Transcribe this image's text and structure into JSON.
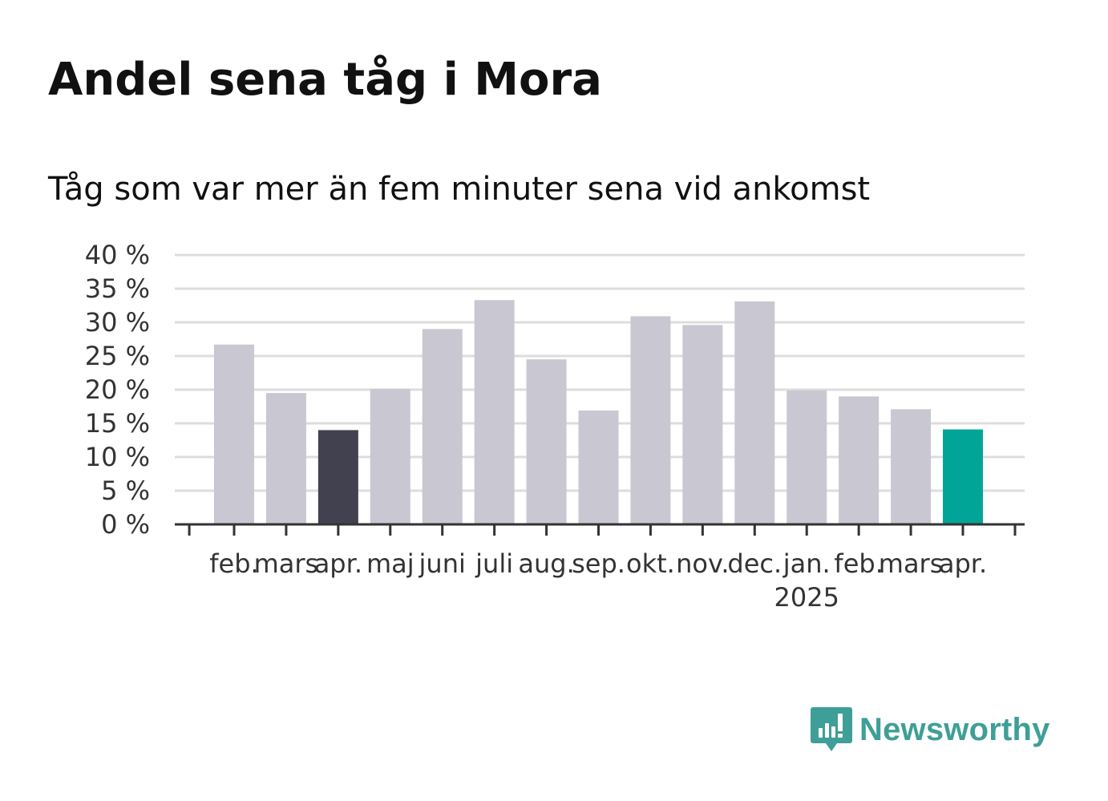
{
  "title": "Andel sena tåg i Mora",
  "subtitle": "Tåg som var mer än fem minuter sena vid ankomst",
  "brand": {
    "name": "Newsworthy",
    "color": "#3e9f98"
  },
  "colors": {
    "bar_default": "#c8c7d2",
    "bar_comparison": "#42414f",
    "bar_latest": "#00a598",
    "grid": "#dddddd",
    "axis": "#333333"
  },
  "chart_data": {
    "type": "bar",
    "categories": [
      "feb.",
      "mars",
      "apr.",
      "maj",
      "juni",
      "juli",
      "aug.",
      "sep.",
      "okt.",
      "nov.",
      "dec.",
      "jan.",
      "feb.",
      "mars",
      "apr."
    ],
    "year_labels": [
      {
        "index": 11,
        "label": "2025"
      }
    ],
    "values": [
      26.7,
      19.5,
      14.0,
      20.1,
      29.0,
      33.3,
      24.5,
      16.9,
      30.9,
      29.6,
      33.1,
      19.9,
      19.0,
      17.1,
      14.1
    ],
    "highlight": {
      "2": "comparison",
      "14": "latest"
    },
    "ylim": [
      0,
      40
    ],
    "yticks": [
      0,
      5,
      10,
      15,
      20,
      25,
      30,
      35,
      40
    ],
    "ytick_labels": [
      "0 %",
      "5 %",
      "10 %",
      "15 %",
      "20 %",
      "25 %",
      "30 %",
      "35 %",
      "40 %"
    ],
    "xlabel": "",
    "ylabel": "",
    "grid": true,
    "legend": "none"
  }
}
